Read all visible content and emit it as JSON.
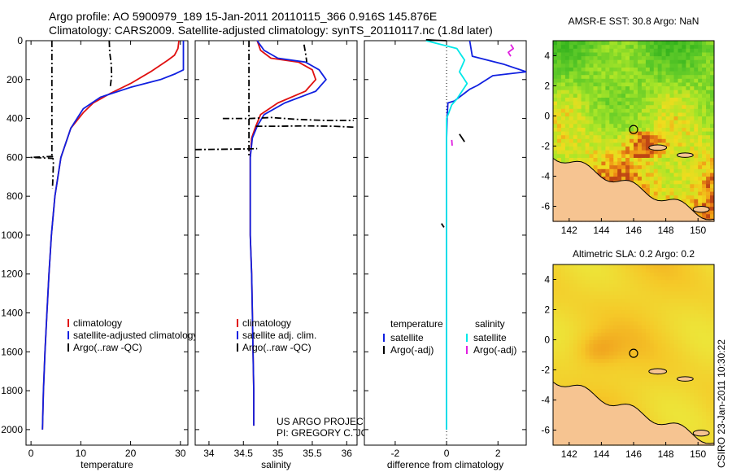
{
  "header": {
    "line1": "Argo profile: AO 5900979_189 15-Jan-2011 20110115_366 0.916S 145.876E",
    "line2": "Climatology: CARS2009. Satellite-adjusted climatology: synTS_20110117.nc (1.8d later)"
  },
  "stamp": "CSIRO 23-Jan-2011 10:30:22",
  "colors": {
    "climatology": "#e01010",
    "satellite": "#1020e0",
    "argo": "#000000",
    "satellite_sal": "#00e8e8",
    "argo_sal_adj": "#e020e0",
    "land": "#f6c491"
  },
  "chart_data": [
    {
      "id": "temperature",
      "type": "line",
      "xlabel": "temperature",
      "xlim": [
        -1,
        31.5
      ],
      "ylim": [
        2080,
        0
      ],
      "xticks": [
        0,
        10,
        20,
        30
      ],
      "yticks": [
        0,
        200,
        400,
        600,
        800,
        1000,
        1200,
        1400,
        1600,
        1800,
        2000
      ],
      "legend": [
        "climatology",
        "satellite-adjusted climatology",
        "Argo(..raw -QC)"
      ],
      "series": [
        {
          "name": "climatology",
          "color": "climatology",
          "dash": "",
          "x": [
            29.7,
            29.5,
            28.8,
            27.5,
            24,
            20,
            16,
            12.5,
            10.5,
            8,
            6,
            4.8,
            4.1,
            3.6,
            3.2,
            2.8,
            2.5,
            2.3
          ],
          "y": [
            0,
            40,
            75,
            100,
            160,
            220,
            270,
            320,
            370,
            450,
            600,
            800,
            1000,
            1200,
            1400,
            1600,
            1800,
            2000
          ]
        },
        {
          "name": "satellite-adjusted climatology",
          "color": "satellite",
          "dash": "",
          "x": [
            30.6,
            30.6,
            30.6,
            30.6,
            29,
            26,
            20,
            14,
            10.5,
            8,
            6,
            4.8,
            4.1,
            3.6,
            3.2,
            2.8,
            2.5,
            2.3
          ],
          "y": [
            0,
            50,
            100,
            150,
            170,
            200,
            240,
            290,
            350,
            450,
            600,
            800,
            1000,
            1200,
            1400,
            1600,
            1800,
            2000
          ]
        },
        {
          "name": "Argo(..raw -QC)",
          "color": "argo",
          "dash": "8,3,2,3",
          "x": [
            4.2,
            4.2,
            4.2,
            4.2,
            4.2,
            4.2,
            4.2,
            4.2,
            4.2,
            4.2,
            4.3,
            0,
            4.4,
            4.5,
            4.4,
            4.3
          ],
          "y": [
            0,
            100,
            200,
            300,
            400,
            500,
            560,
            580,
            590,
            600,
            595,
            600,
            605,
            620,
            700,
            760
          ]
        },
        {
          "name": "Argo(..raw -QC)",
          "color": "argo",
          "dash": "8,3,2,3",
          "x": [
            15.7,
            15.8,
            16.1,
            16.2,
            16.0,
            15.9
          ],
          "y": [
            0,
            60,
            120,
            180,
            220,
            240
          ]
        }
      ]
    },
    {
      "id": "salinity",
      "type": "line",
      "xlabel": "salinity",
      "xlim": [
        33.8,
        36.15
      ],
      "ylim": [
        2080,
        0
      ],
      "xticks": [
        34,
        34.5,
        35,
        35.5,
        36
      ],
      "legend": [
        "climatology",
        "satellite adj. clim.",
        "Argo(..raw -QC)"
      ],
      "series": [
        {
          "name": "climatology",
          "color": "climatology",
          "dash": "",
          "x": [
            34.7,
            34.75,
            34.9,
            35.3,
            35.5,
            35.55,
            35.4,
            35.0,
            34.75,
            34.68,
            34.62,
            34.6,
            34.6,
            34.6,
            34.62,
            34.63,
            34.64,
            34.65,
            34.65
          ],
          "y": [
            0,
            50,
            90,
            110,
            150,
            200,
            260,
            320,
            380,
            440,
            500,
            600,
            800,
            1000,
            1200,
            1400,
            1600,
            1800,
            1980
          ]
        },
        {
          "name": "satellite adj. clim.",
          "color": "satellite",
          "dash": "",
          "x": [
            34.7,
            34.8,
            35.0,
            35.4,
            35.6,
            35.7,
            35.55,
            35.1,
            34.8,
            34.7,
            34.63,
            34.6,
            34.6,
            34.6,
            34.62,
            34.63,
            34.64,
            34.65,
            34.65
          ],
          "y": [
            0,
            50,
            90,
            110,
            150,
            200,
            260,
            320,
            380,
            440,
            500,
            600,
            800,
            1000,
            1200,
            1400,
            1600,
            1800,
            1980
          ]
        },
        {
          "name": "Argo(..raw -QC)",
          "color": "argo",
          "dash": "8,3,2,3",
          "x": [
            34.58,
            34.58,
            34.58,
            34.58,
            34.58,
            34.58,
            34.58,
            34.58,
            34.58,
            34.58
          ],
          "y": [
            0,
            100,
            200,
            300,
            400,
            500,
            540,
            550,
            560,
            600
          ]
        },
        {
          "name": "Argo(..raw -QC)",
          "color": "argo",
          "dash": "8,3,2,3",
          "x": [
            34.2,
            34.6,
            34.9,
            35.3,
            35.7,
            36.1
          ],
          "y": [
            400,
            400,
            395,
            405,
            410,
            410
          ]
        },
        {
          "name": "Argo(..raw -QC)",
          "color": "argo",
          "dash": "8,3,2,3",
          "x": [
            34.68,
            35.0,
            35.4,
            35.8,
            36.1
          ],
          "y": [
            440,
            440,
            438,
            440,
            445
          ]
        },
        {
          "name": "Argo(..raw -QC)",
          "color": "argo",
          "dash": "8,3,2,3",
          "x": [
            33.8,
            34.3,
            34.6,
            34.7
          ],
          "y": [
            560,
            558,
            556,
            555
          ]
        },
        {
          "name": "Argo(..raw -QC)",
          "color": "argo",
          "dash": "8,3,2,3",
          "x": [
            35.38,
            35.4,
            35.42
          ],
          "y": [
            20,
            60,
            110
          ]
        }
      ],
      "annotations": [
        "US ARGO PROJECT",
        "PI: GREGORY C. JOHNSON"
      ]
    },
    {
      "id": "difference",
      "type": "line",
      "xlabel": "difference from climatology",
      "xlim": [
        -3.2,
        3.1
      ],
      "ylim": [
        2080,
        0
      ],
      "xticks": [
        -2,
        0,
        2
      ],
      "legend_left_title": "temperature",
      "legend_right_title": "salinity",
      "legend_left": [
        "satellite",
        "Argo(-adj)"
      ],
      "legend_right": [
        "satellite",
        "Argo(-adj)"
      ],
      "series": [
        {
          "name": "satellite",
          "color": "satellite",
          "dash": "",
          "x": [
            0.9,
            1.0,
            2.2,
            3.1,
            1.8,
            1.2,
            0.9,
            0.7,
            0.5,
            0.3,
            0.05,
            0.02,
            0.0,
            0.0,
            0.0,
            0.0,
            0.0,
            0.0,
            0.0
          ],
          "y": [
            0,
            80,
            120,
            160,
            180,
            230,
            250,
            270,
            290,
            310,
            320,
            400,
            500,
            700,
            900,
            1200,
            1500,
            1800,
            2000
          ]
        },
        {
          "name": "satellite",
          "color": "satellite_sal",
          "dash": "",
          "x": [
            -0.8,
            0.4,
            0.7,
            0.5,
            0.8,
            0.6,
            0.4,
            0.2,
            0.0,
            0.0,
            0.0,
            0.0,
            0.0,
            0.0,
            0.0
          ],
          "y": [
            0,
            40,
            100,
            160,
            220,
            260,
            300,
            330,
            400,
            500,
            700,
            1000,
            1400,
            1800,
            2000
          ]
        },
        {
          "name": "Argo(-adj)",
          "color": "argo_sal_adj",
          "dash": "",
          "x": [
            2.5,
            2.6,
            2.4,
            2.5
          ],
          "y": [
            20,
            40,
            60,
            80
          ]
        },
        {
          "name": "Argo(-adj)",
          "color": "argo_sal_adj",
          "dash": "",
          "x": [
            0.2,
            0.22
          ],
          "y": [
            510,
            540
          ]
        },
        {
          "name": "Argo(-adj)",
          "color": "argo",
          "dash": "",
          "x": [
            0.5,
            0.7
          ],
          "y": [
            480,
            520
          ]
        },
        {
          "name": "Argo(-adj)",
          "color": "argo",
          "dash": "",
          "x": [
            -0.2,
            -0.1
          ],
          "y": [
            940,
            960
          ]
        },
        {
          "name": "Argo(-adj)",
          "color": "argo",
          "dash": "",
          "x": [
            -0.8,
            -0.4,
            0.0
          ],
          "y": [
            -5,
            -2,
            0
          ]
        }
      ]
    },
    {
      "id": "sst-map",
      "type": "heatmap",
      "title": "AMSR-E SST: 30.8 Argo: NaN",
      "xlim": [
        141,
        151
      ],
      "ylim": [
        -7,
        5
      ],
      "xticks": [
        142,
        144,
        146,
        148,
        150
      ],
      "yticks": [
        -6,
        -4,
        -2,
        0,
        2,
        4
      ],
      "marker": [
        146,
        -0.9
      ]
    },
    {
      "id": "sla-map",
      "type": "heatmap",
      "title": "Altimetric SLA: 0.2 Argo: 0.2",
      "xlim": [
        141,
        151
      ],
      "ylim": [
        -7,
        5
      ],
      "xticks": [
        142,
        144,
        146,
        148,
        150
      ],
      "yticks": [
        -6,
        -4,
        -2,
        0,
        2,
        4
      ],
      "marker": [
        146,
        -0.9
      ]
    }
  ]
}
